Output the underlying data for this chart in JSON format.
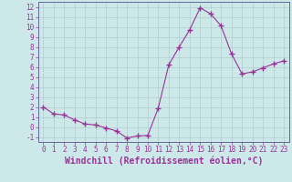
{
  "x": [
    0,
    1,
    2,
    3,
    4,
    5,
    6,
    7,
    8,
    9,
    10,
    11,
    12,
    13,
    14,
    15,
    16,
    17,
    18,
    19,
    20,
    21,
    22,
    23
  ],
  "y": [
    2.0,
    1.3,
    1.2,
    0.7,
    0.3,
    0.2,
    -0.1,
    -0.4,
    -1.1,
    -0.9,
    -0.85,
    1.9,
    6.2,
    8.0,
    9.7,
    11.9,
    11.3,
    10.1,
    7.3,
    5.3,
    5.5,
    5.9,
    6.3,
    6.6
  ],
  "line_color": "#993399",
  "marker": "+",
  "marker_size": 4,
  "bg_color": "#cce8e8",
  "grid_color": "#b0cccc",
  "xlabel": "Windchill (Refroidissement éolien,°C)",
  "ylabel": "",
  "xlim": [
    -0.5,
    23.5
  ],
  "ylim": [
    -1.5,
    12.5
  ],
  "yticks": [
    -1,
    0,
    1,
    2,
    3,
    4,
    5,
    6,
    7,
    8,
    9,
    10,
    11,
    12
  ],
  "xticks": [
    0,
    1,
    2,
    3,
    4,
    5,
    6,
    7,
    8,
    9,
    10,
    11,
    12,
    13,
    14,
    15,
    16,
    17,
    18,
    19,
    20,
    21,
    22,
    23
  ],
  "tick_color": "#993399",
  "tick_fontsize": 5.5,
  "xlabel_fontsize": 7.0,
  "spine_color": "#666699"
}
